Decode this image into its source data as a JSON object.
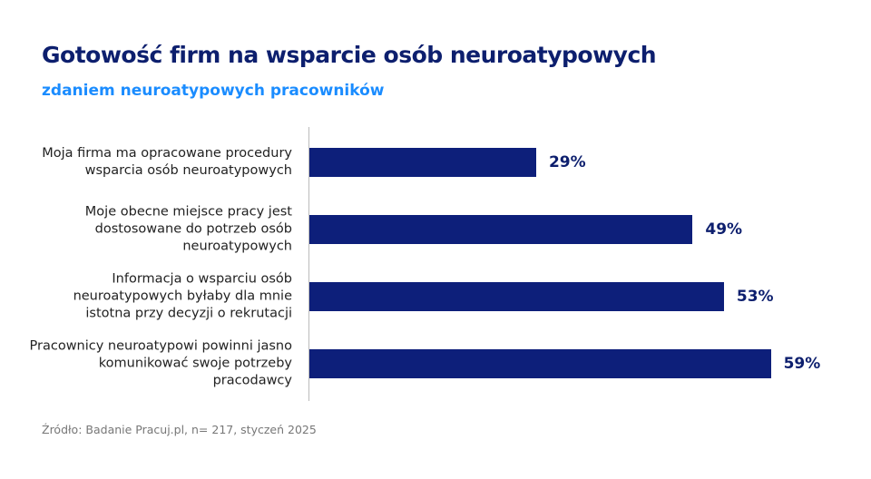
{
  "chart_data": {
    "type": "bar",
    "orientation": "horizontal",
    "title": "Gotowość firm na wsparcie osób neuroatypowych",
    "subtitle": "zdaniem neuroatypowych pracowników",
    "categories": [
      "Moja firma ma opracowane procedury wsparcia osób neuroatypowych",
      "Moje obecne miejsce pracy jest dostosowane do potrzeb osób neuroatypowych",
      "Informacja o wsparciu osób neuroatypowych byłaby dla mnie istotna przy decyzji o rekrutacji",
      "Pracownicy neuroatypowi powinni jasno komunikować swoje potrzeby pracodawcy"
    ],
    "values": [
      29,
      49,
      53,
      59
    ],
    "value_labels": [
      "29%",
      "49%",
      "53%",
      "59%"
    ],
    "color": "#0d1f7a",
    "source": "Źródło: Badanie Pracuj.pl, n= 217, styczeń 2025"
  }
}
